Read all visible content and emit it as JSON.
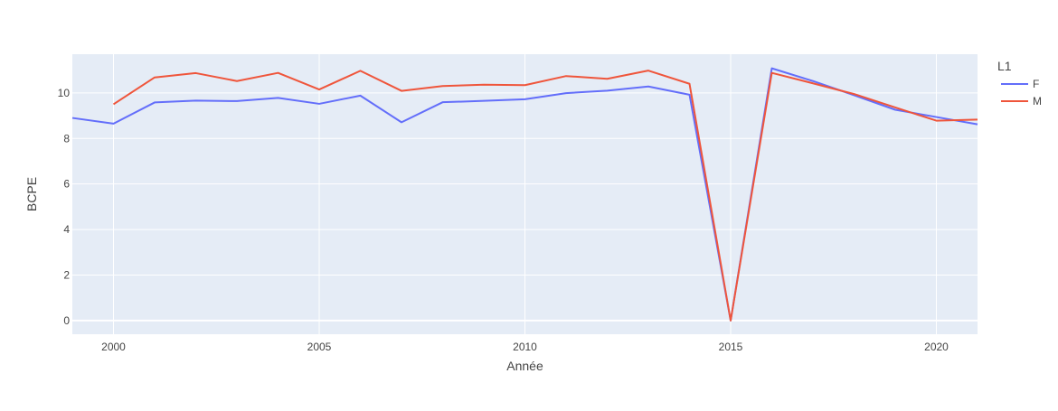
{
  "chart_data": {
    "type": "line",
    "xlabel": "Année",
    "ylabel": "BCPE",
    "xlim": [
      1999,
      2021
    ],
    "ylim": [
      -0.6,
      11.7
    ],
    "x_ticks": [
      2000,
      2005,
      2010,
      2015,
      2020
    ],
    "y_ticks": [
      0,
      2,
      4,
      6,
      8,
      10
    ],
    "grid": true,
    "legend": {
      "title": "L1",
      "placement": "right"
    },
    "series": [
      {
        "name": "F",
        "color": "#636efa",
        "x": [
          1999,
          2000,
          2001,
          2002,
          2003,
          2004,
          2005,
          2006,
          2007,
          2008,
          2009,
          2010,
          2011,
          2012,
          2013,
          2014,
          2015,
          2016,
          2017,
          2018,
          2019,
          2020,
          2021
        ],
        "y": [
          8.9,
          8.65,
          9.58,
          9.66,
          9.64,
          9.78,
          9.52,
          9.88,
          8.71,
          9.59,
          9.65,
          9.72,
          9.99,
          10.1,
          10.28,
          9.92,
          0.0,
          11.08,
          10.52,
          9.9,
          9.26,
          8.94,
          8.62
        ]
      },
      {
        "name": "M",
        "color": "#ef553b",
        "x": [
          2000,
          2001,
          2002,
          2003,
          2004,
          2005,
          2006,
          2007,
          2008,
          2009,
          2010,
          2011,
          2012,
          2013,
          2014,
          2015,
          2016,
          2017,
          2018,
          2019,
          2020,
          2021
        ],
        "y": [
          9.5,
          10.68,
          10.87,
          10.52,
          10.88,
          10.15,
          10.97,
          10.09,
          10.3,
          10.36,
          10.34,
          10.74,
          10.62,
          10.98,
          10.4,
          0.0,
          10.88,
          10.42,
          9.95,
          9.36,
          8.78,
          8.83
        ]
      }
    ]
  }
}
